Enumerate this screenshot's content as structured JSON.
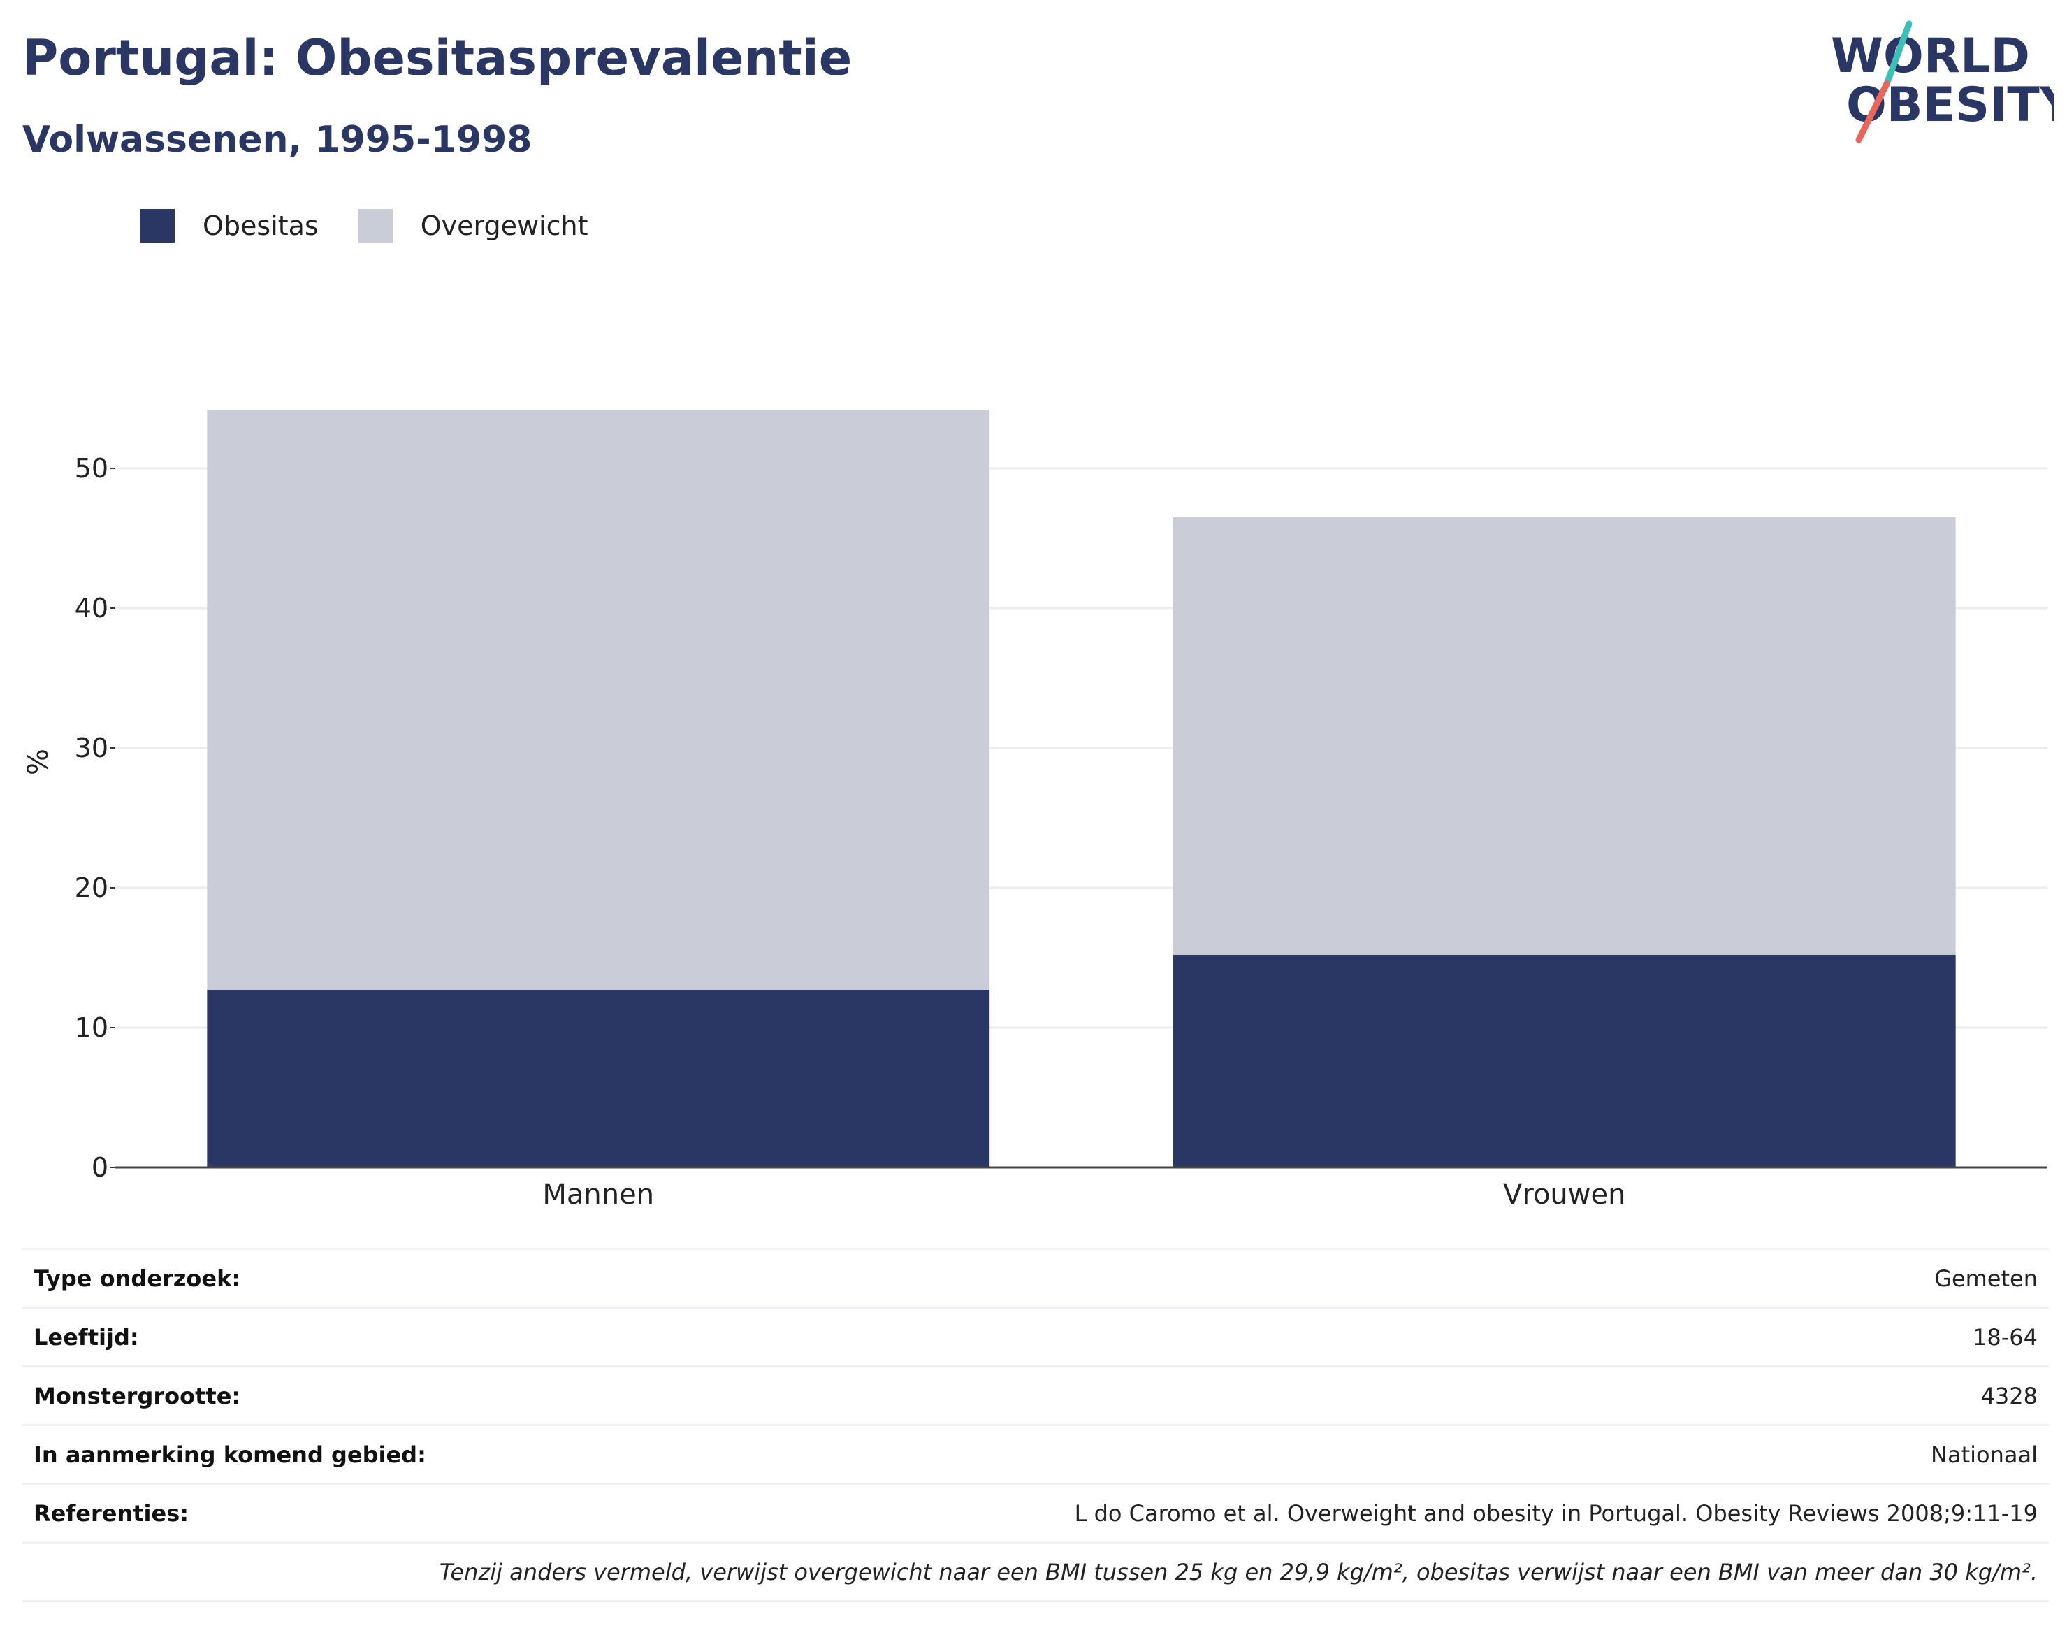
{
  "header": {
    "title": "Portugal: Obesitasprevalentie",
    "subtitle": "Volwassenen, 1995-1998"
  },
  "logo": {
    "line1": "WORLD",
    "line2": "OBESITY",
    "slash_color_top": "#3dbfb8",
    "slash_color_bottom": "#e8665a"
  },
  "colors": {
    "obesitas": "#2a3663",
    "overgewicht": "#cacdd8",
    "title": "#2a3663"
  },
  "chart_data": {
    "type": "bar",
    "stacked": true,
    "categories": [
      "Mannen",
      "Vrouwen"
    ],
    "series": [
      {
        "name": "Obesitas",
        "values": [
          12.7,
          15.2
        ]
      },
      {
        "name": "Overgewicht",
        "values": [
          41.5,
          31.3
        ]
      }
    ],
    "ylabel": "%",
    "xlabel": "",
    "ylim": [
      0,
      58
    ],
    "yticks": [
      0,
      10,
      20,
      30,
      40,
      50
    ],
    "grid": true,
    "legend_position": "top-left"
  },
  "info": {
    "rows": [
      {
        "label": "Type onderzoek:",
        "value": "Gemeten"
      },
      {
        "label": "Leeftijd:",
        "value": "18-64"
      },
      {
        "label": "Monstergrootte:",
        "value": "4328"
      },
      {
        "label": "In aanmerking komend gebied:",
        "value": "Nationaal"
      },
      {
        "label": "Referenties:",
        "value": "L do Caromo et al. Overweight and obesity in Portugal. Obesity Reviews 2008;9:11-19"
      }
    ],
    "footnote": "Tenzij anders vermeld, verwijst overgewicht naar een BMI tussen 25 kg en 29,9 kg/m², obesitas verwijst naar een BMI van meer dan 30 kg/m²."
  }
}
